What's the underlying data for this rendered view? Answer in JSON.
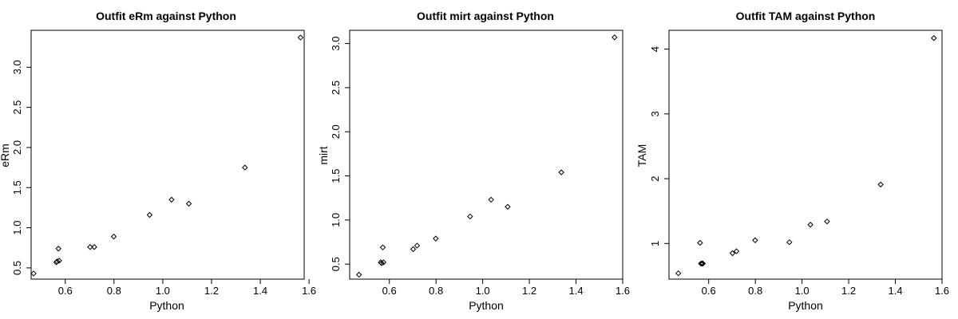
{
  "chart_data": [
    {
      "type": "scatter",
      "title": "Outfit eRm against Python",
      "xlabel": "Python",
      "ylabel": "eRm",
      "xlim": [
        0.46,
        1.58
      ],
      "ylim": [
        0.36,
        3.46
      ],
      "xticks": [
        "0.6",
        "0.8",
        "1.0",
        "1.2",
        "1.4",
        "1.6"
      ],
      "yticks": [
        "0.5",
        "1.0",
        "1.5",
        "2.0",
        "2.5",
        "3.0"
      ],
      "x": [
        0.47,
        0.563,
        0.567,
        0.572,
        0.575,
        0.702,
        0.719,
        0.799,
        0.946,
        1.036,
        1.107,
        1.337,
        1.565
      ],
      "y": [
        0.43,
        0.57,
        0.58,
        0.74,
        0.59,
        0.76,
        0.76,
        0.89,
        1.16,
        1.35,
        1.3,
        1.75,
        3.37
      ]
    },
    {
      "type": "scatter",
      "title": "Outfit mirt against Python",
      "xlabel": "Python",
      "ylabel": "mirt",
      "xlim": [
        0.43,
        1.6
      ],
      "ylim": [
        0.33,
        3.15
      ],
      "xticks": [
        "0.6",
        "0.8",
        "1.0",
        "1.2",
        "1.4",
        "1.6"
      ],
      "yticks": [
        "0.5",
        "1.0",
        "1.5",
        "2.0",
        "2.5",
        "3.0"
      ],
      "x": [
        0.47,
        0.563,
        0.567,
        0.572,
        0.575,
        0.702,
        0.719,
        0.799,
        0.946,
        1.036,
        1.107,
        1.337,
        1.565
      ],
      "y": [
        0.38,
        0.52,
        0.51,
        0.69,
        0.52,
        0.67,
        0.71,
        0.79,
        1.04,
        1.23,
        1.15,
        1.54,
        3.07
      ]
    },
    {
      "type": "scatter",
      "title": "Outfit TAM against Python",
      "xlabel": "Python",
      "ylabel": "TAM",
      "xlim": [
        0.43,
        1.6
      ],
      "ylim": [
        0.45,
        4.29
      ],
      "xticks": [
        "0.6",
        "0.8",
        "1.0",
        "1.2",
        "1.4",
        "1.6"
      ],
      "yticks": [
        "1",
        "2",
        "3",
        "4"
      ],
      "x": [
        0.47,
        0.563,
        0.567,
        0.572,
        0.575,
        0.702,
        0.719,
        0.799,
        0.946,
        1.036,
        1.107,
        1.337,
        1.565
      ],
      "y": [
        0.54,
        1.01,
        0.69,
        0.69,
        0.69,
        0.85,
        0.88,
        1.05,
        1.02,
        1.29,
        1.34,
        1.91,
        4.17
      ]
    }
  ]
}
